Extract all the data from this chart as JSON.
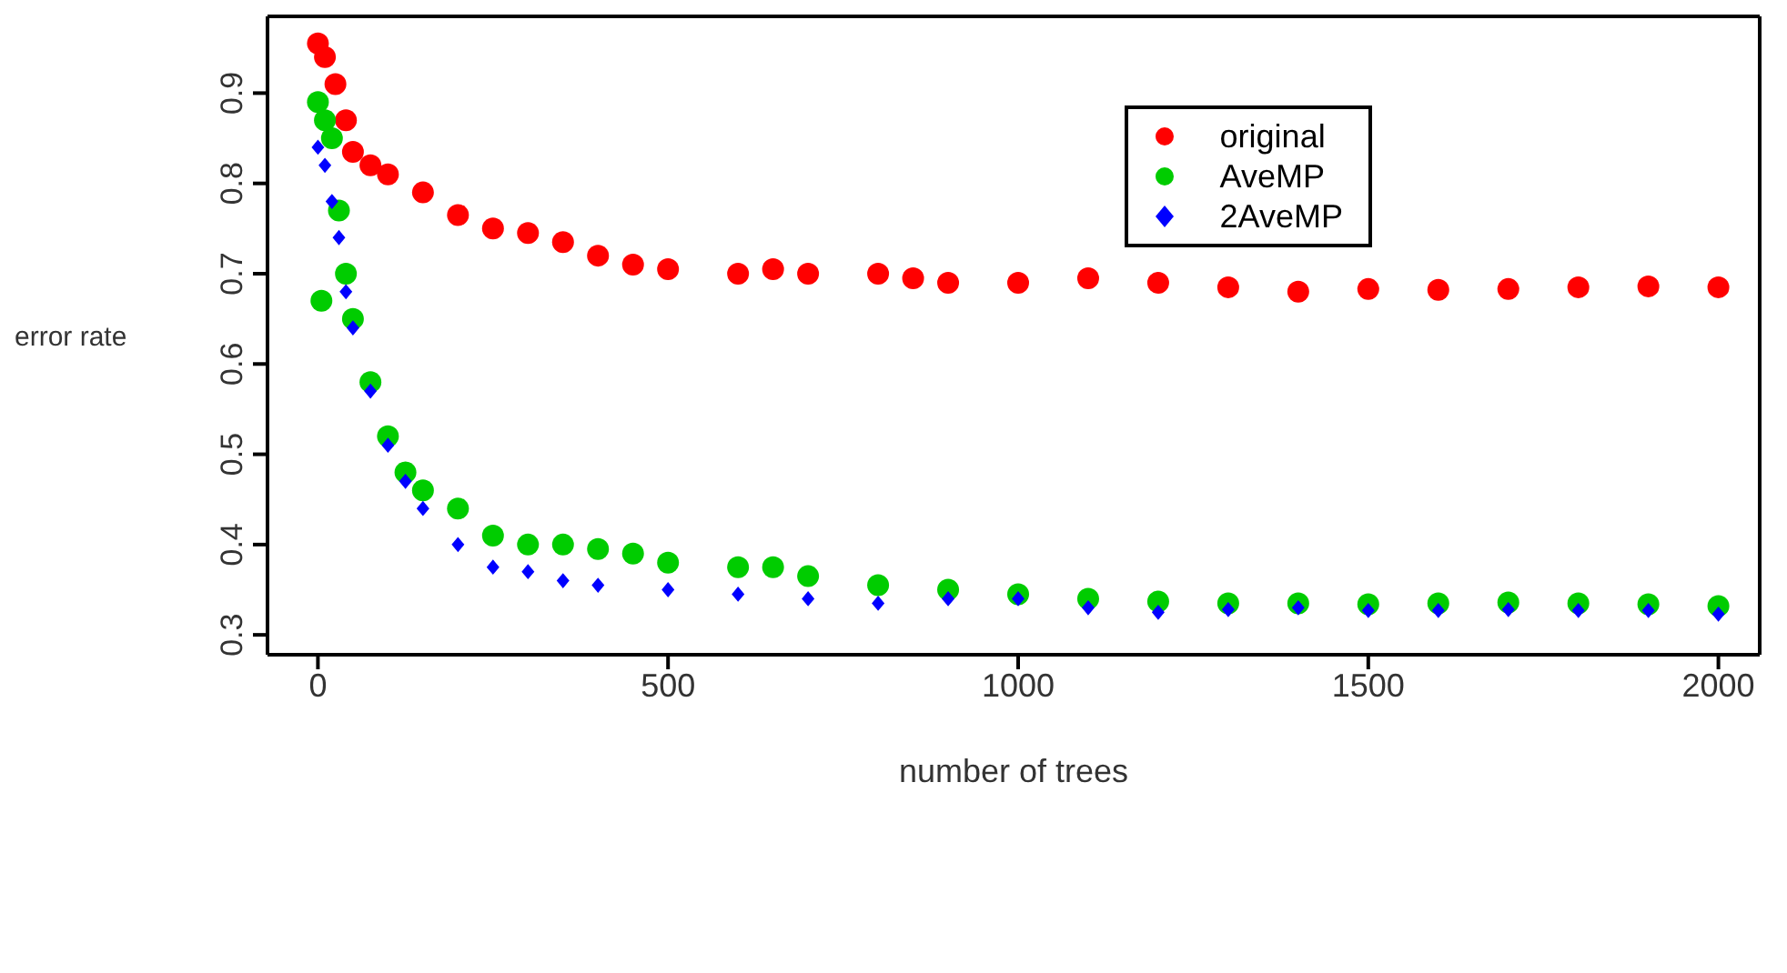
{
  "chart_data": {
    "type": "scatter",
    "xlabel": "number of trees",
    "ylabel": "error rate",
    "xlim": [
      -72,
      2059
    ],
    "ylim": [
      0.278,
      0.985
    ],
    "xticks": [
      0,
      500,
      1000,
      1500,
      2000
    ],
    "yticks": [
      0.3,
      0.4,
      0.5,
      0.6,
      0.7,
      0.8,
      0.9
    ],
    "grid": false,
    "legend": "top right",
    "marker": "circle",
    "series": [
      {
        "name": "original",
        "color": "#ff0000",
        "x": [
          0,
          10,
          25,
          40,
          50,
          75,
          100,
          150,
          200,
          250,
          300,
          350,
          400,
          450,
          500,
          600,
          650,
          700,
          800,
          850,
          900,
          1000,
          1100,
          1200,
          1300,
          1400,
          1500,
          1600,
          1700,
          1800,
          1900,
          2000
        ],
        "values": [
          0.955,
          0.94,
          0.91,
          0.87,
          0.835,
          0.82,
          0.81,
          0.79,
          0.765,
          0.75,
          0.745,
          0.735,
          0.72,
          0.71,
          0.705,
          0.7,
          0.705,
          0.7,
          0.7,
          0.695,
          0.69,
          0.69,
          0.695,
          0.69,
          0.685,
          0.68,
          0.683,
          0.682,
          0.683,
          0.685,
          0.686,
          0.685
        ]
      },
      {
        "name": "AveMP",
        "color": "#00cc00",
        "x": [
          0,
          5,
          10,
          20,
          30,
          40,
          50,
          75,
          100,
          125,
          150,
          200,
          250,
          300,
          350,
          400,
          450,
          500,
          600,
          650,
          700,
          800,
          900,
          1000,
          1100,
          1200,
          1300,
          1400,
          1500,
          1600,
          1700,
          1800,
          1900,
          2000
        ],
        "values": [
          0.89,
          0.67,
          0.87,
          0.85,
          0.77,
          0.7,
          0.65,
          0.58,
          0.52,
          0.48,
          0.46,
          0.44,
          0.41,
          0.4,
          0.4,
          0.395,
          0.39,
          0.38,
          0.375,
          0.375,
          0.365,
          0.355,
          0.35,
          0.345,
          0.34,
          0.337,
          0.335,
          0.335,
          0.334,
          0.335,
          0.336,
          0.335,
          0.334,
          0.332
        ]
      },
      {
        "name": "2AveMP",
        "color": "#0000ff",
        "marker": "diamond",
        "x": [
          0,
          10,
          20,
          30,
          40,
          50,
          75,
          100,
          125,
          150,
          200,
          250,
          300,
          350,
          400,
          500,
          600,
          700,
          800,
          900,
          1000,
          1100,
          1200,
          1300,
          1400,
          1500,
          1600,
          1700,
          1800,
          1900,
          2000
        ],
        "values": [
          0.84,
          0.82,
          0.78,
          0.74,
          0.68,
          0.64,
          0.57,
          0.51,
          0.47,
          0.44,
          0.4,
          0.375,
          0.37,
          0.36,
          0.355,
          0.35,
          0.345,
          0.34,
          0.335,
          0.34,
          0.34,
          0.33,
          0.325,
          0.328,
          0.33,
          0.327,
          0.327,
          0.328,
          0.327,
          0.327,
          0.323
        ]
      }
    ]
  }
}
